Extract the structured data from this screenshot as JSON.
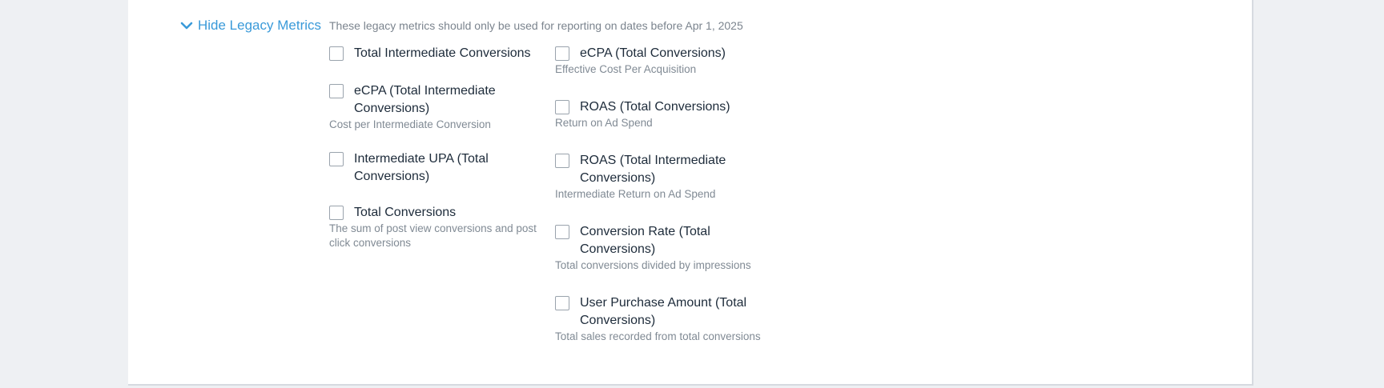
{
  "legacy": {
    "toggle_label": "Hide Legacy Metrics",
    "notice": "These legacy metrics should only be used for reporting on dates before Apr 1, 2025"
  },
  "left_column": [
    {
      "label": "Total Intermediate Conversions",
      "desc": ""
    },
    {
      "label": "eCPA (Total Intermediate Conversions)",
      "desc": "Cost per Intermediate Conversion"
    },
    {
      "label": "Intermediate UPA (Total Conversions)",
      "desc": ""
    },
    {
      "label": "Total Conversions",
      "desc": "The sum of post view conversions and post click conversions"
    }
  ],
  "right_column": [
    {
      "label": "eCPA (Total Conversions)",
      "desc": "Effective Cost Per Acquisition"
    },
    {
      "label": "ROAS (Total Conversions)",
      "desc": "Return on Ad Spend"
    },
    {
      "label": "ROAS (Total Intermediate Conversions)",
      "desc": "Intermediate Return on Ad Spend"
    },
    {
      "label": "Conversion Rate (Total Conversions)",
      "desc": "Total conversions divided by impressions"
    },
    {
      "label": "User Purchase Amount (Total Conversions)",
      "desc": "Total sales recorded from total conversions"
    }
  ],
  "colors": {
    "accent": "#3a9ad9",
    "text": "#1d2b3a",
    "muted": "#808a94"
  },
  "icons": {
    "toggle": "chevron-down-icon"
  }
}
